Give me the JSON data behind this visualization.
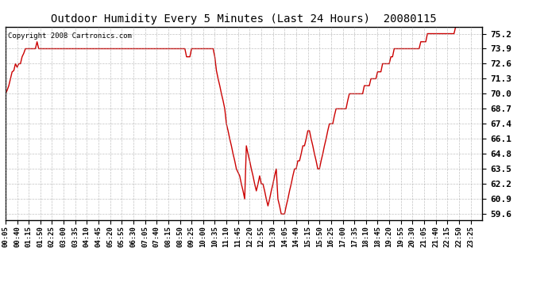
{
  "title": "Outdoor Humidity Every 5 Minutes (Last 24 Hours)  20080115",
  "copyright": "Copyright 2008 Cartronics.com",
  "line_color": "#cc0000",
  "background_color": "#ffffff",
  "grid_color": "#999999",
  "yticks": [
    59.6,
    60.9,
    62.2,
    63.5,
    64.8,
    66.1,
    67.4,
    68.7,
    70.0,
    71.3,
    72.6,
    73.9,
    75.2
  ],
  "ylim": [
    59.1,
    75.8
  ],
  "x_labels": [
    "00:05",
    "00:40",
    "01:15",
    "01:50",
    "02:25",
    "03:00",
    "03:35",
    "04:10",
    "04:45",
    "05:20",
    "05:55",
    "06:30",
    "07:05",
    "07:40",
    "08:15",
    "08:50",
    "09:25",
    "10:00",
    "10:35",
    "11:10",
    "11:45",
    "12:20",
    "12:55",
    "13:30",
    "14:05",
    "14:40",
    "15:15",
    "15:50",
    "16:25",
    "17:00",
    "17:35",
    "18:10",
    "18:45",
    "19:20",
    "19:55",
    "20:30",
    "21:05",
    "21:40",
    "22:15",
    "22:50",
    "23:25"
  ],
  "x_tick_every": 7,
  "humidity_values": [
    70.0,
    70.3,
    70.7,
    71.3,
    71.9,
    72.0,
    72.6,
    72.3,
    72.6,
    72.6,
    73.2,
    73.5,
    73.9,
    73.9,
    73.9,
    73.9,
    73.9,
    73.9,
    73.9,
    74.5,
    73.9,
    73.9,
    73.9,
    73.9,
    73.9,
    73.9,
    73.9,
    73.9,
    73.9,
    73.9,
    73.9,
    73.9,
    73.9,
    73.9,
    73.9,
    73.9,
    73.9,
    73.9,
    73.9,
    73.9,
    73.9,
    73.9,
    73.9,
    73.9,
    73.9,
    73.9,
    73.9,
    73.9,
    73.9,
    73.9,
    73.9,
    73.9,
    73.9,
    73.9,
    73.9,
    73.9,
    73.9,
    73.9,
    73.9,
    73.9,
    73.9,
    73.9,
    73.9,
    73.9,
    73.9,
    73.9,
    73.9,
    73.9,
    73.9,
    73.9,
    73.9,
    73.9,
    73.9,
    73.9,
    73.9,
    73.9,
    73.9,
    73.9,
    73.9,
    73.9,
    73.9,
    73.9,
    73.9,
    73.9,
    73.9,
    73.9,
    73.9,
    73.9,
    73.9,
    73.9,
    73.9,
    73.9,
    73.9,
    73.9,
    73.9,
    73.9,
    73.9,
    73.9,
    73.9,
    73.9,
    73.9,
    73.9,
    73.9,
    73.9,
    73.9,
    73.9,
    73.9,
    73.9,
    73.9,
    73.2,
    73.2,
    73.2,
    73.9,
    73.9,
    73.9,
    73.9,
    73.9,
    73.9,
    73.9,
    73.9,
    73.9,
    73.9,
    73.9,
    73.9,
    73.9,
    73.9,
    73.2,
    72.0,
    71.3,
    70.7,
    70.0,
    69.4,
    68.7,
    67.4,
    66.8,
    66.1,
    65.5,
    64.8,
    64.2,
    63.5,
    63.2,
    62.9,
    62.2,
    61.6,
    60.9,
    65.5,
    64.8,
    64.2,
    63.5,
    62.9,
    62.2,
    61.6,
    62.2,
    62.9,
    62.2,
    62.2,
    61.6,
    60.9,
    60.3,
    60.9,
    61.6,
    62.2,
    62.9,
    63.5,
    60.9,
    60.3,
    59.6,
    59.6,
    59.6,
    60.3,
    60.9,
    61.6,
    62.2,
    62.9,
    63.5,
    63.5,
    64.2,
    64.2,
    64.8,
    65.5,
    65.5,
    66.1,
    66.8,
    66.8,
    66.1,
    65.5,
    64.8,
    64.2,
    63.5,
    63.5,
    64.2,
    64.8,
    65.5,
    66.1,
    66.8,
    67.4,
    67.4,
    67.4,
    68.1,
    68.7,
    68.7,
    68.7,
    68.7,
    68.7,
    68.7,
    68.7,
    69.4,
    70.0,
    70.0,
    70.0,
    70.0,
    70.0,
    70.0,
    70.0,
    70.0,
    70.0,
    70.7,
    70.7,
    70.7,
    70.7,
    71.3,
    71.3,
    71.3,
    71.3,
    71.9,
    71.9,
    71.9,
    72.6,
    72.6,
    72.6,
    72.6,
    72.6,
    73.2,
    73.2,
    73.9,
    73.9,
    73.9,
    73.9,
    73.9,
    73.9,
    73.9,
    73.9,
    73.9,
    73.9,
    73.9,
    73.9,
    73.9,
    73.9,
    73.9,
    73.9,
    74.5,
    74.5,
    74.5,
    74.5,
    75.2,
    75.2,
    75.2,
    75.2,
    75.2,
    75.2,
    75.2,
    75.2,
    75.2,
    75.2,
    75.2,
    75.2,
    75.2,
    75.2,
    75.2,
    75.2,
    75.2,
    75.8,
    75.8,
    75.8,
    75.8,
    75.8,
    75.8,
    75.8,
    75.8,
    75.8,
    75.8,
    75.8,
    75.8,
    75.8,
    75.8,
    75.8,
    75.8,
    75.8
  ]
}
